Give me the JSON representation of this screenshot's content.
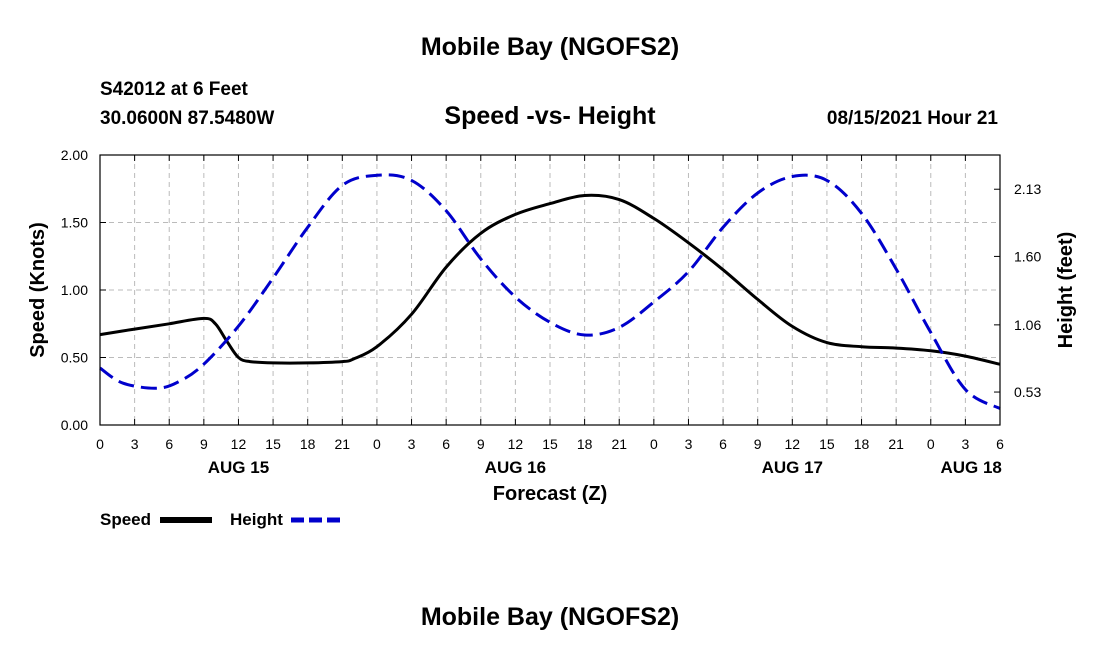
{
  "header": {
    "title": "Mobile Bay (NGOFS2)",
    "station": "S42012 at 6 Feet",
    "coords": "30.0600N  87.5480W",
    "subtitle": "Speed -vs- Height",
    "datetime": "08/15/2021 Hour 21"
  },
  "footer": {
    "title": "Mobile Bay (NGOFS2)"
  },
  "colors": {
    "speed": "#000000",
    "height": "#0000cc",
    "grid": "#bbbbbb"
  },
  "chart_data": {
    "type": "line",
    "title": "Speed -vs- Height",
    "xlabel": "Forecast (Z)",
    "ylabel": "Speed (Knots)",
    "y2label": "Height (feet)",
    "xlim": [
      0,
      78
    ],
    "ylim": [
      0,
      2.0
    ],
    "y2lim": [
      0.27,
      2.4
    ],
    "x_ticks": [
      0,
      3,
      6,
      9,
      12,
      15,
      18,
      21,
      24,
      27,
      30,
      33,
      36,
      39,
      42,
      45,
      48,
      51,
      54,
      57,
      60,
      63,
      66,
      69,
      72,
      75,
      78
    ],
    "x_tick_labels": [
      "0",
      "3",
      "6",
      "9",
      "12",
      "15",
      "18",
      "21",
      "0",
      "3",
      "6",
      "9",
      "12",
      "15",
      "18",
      "21",
      "0",
      "3",
      "6",
      "9",
      "12",
      "15",
      "18",
      "21",
      "0",
      "3",
      "6"
    ],
    "day_labels": [
      {
        "label": "AUG 15",
        "x": 12
      },
      {
        "label": "AUG 16",
        "x": 36
      },
      {
        "label": "AUG 17",
        "x": 60
      },
      {
        "label": "AUG 18",
        "x": 75.5
      }
    ],
    "y_ticks": [
      0,
      0.5,
      1.0,
      1.5,
      2.0
    ],
    "y_tick_labels": [
      "0.00",
      "0.50",
      "1.00",
      "1.50",
      "2.00"
    ],
    "y2_ticks": [
      0.53,
      1.06,
      1.6,
      2.13
    ],
    "y2_tick_labels": [
      "0.53",
      "1.06",
      "1.60",
      "2.13"
    ],
    "grid": true,
    "legend": "bottom-left",
    "series": [
      {
        "name": "Speed",
        "axis": "left",
        "style": "solid",
        "x": [
          0,
          3,
          6,
          9,
          10,
          11,
          12,
          13,
          15,
          18,
          21,
          22,
          24,
          27,
          30,
          33,
          36,
          39,
          42,
          45,
          48,
          51,
          54,
          57,
          60,
          63,
          66,
          69,
          72,
          75,
          78
        ],
        "y": [
          0.67,
          0.71,
          0.75,
          0.79,
          0.75,
          0.62,
          0.5,
          0.47,
          0.46,
          0.46,
          0.47,
          0.49,
          0.58,
          0.82,
          1.17,
          1.42,
          1.56,
          1.64,
          1.7,
          1.67,
          1.53,
          1.35,
          1.15,
          0.93,
          0.73,
          0.61,
          0.58,
          0.57,
          0.55,
          0.51,
          0.45
        ]
      },
      {
        "name": "Height",
        "axis": "right",
        "style": "dashed",
        "x": [
          0,
          2,
          5,
          7,
          9,
          12,
          15,
          18,
          21,
          24,
          27,
          30,
          33,
          36,
          39,
          42,
          45,
          48,
          51,
          54,
          57,
          60,
          63,
          66,
          69,
          72,
          75,
          78
        ],
        "y": [
          0.72,
          0.6,
          0.56,
          0.62,
          0.75,
          1.05,
          1.43,
          1.83,
          2.16,
          2.24,
          2.2,
          1.96,
          1.58,
          1.28,
          1.08,
          0.98,
          1.04,
          1.24,
          1.48,
          1.83,
          2.1,
          2.23,
          2.2,
          1.94,
          1.5,
          1.0,
          0.55,
          0.4
        ]
      }
    ]
  }
}
